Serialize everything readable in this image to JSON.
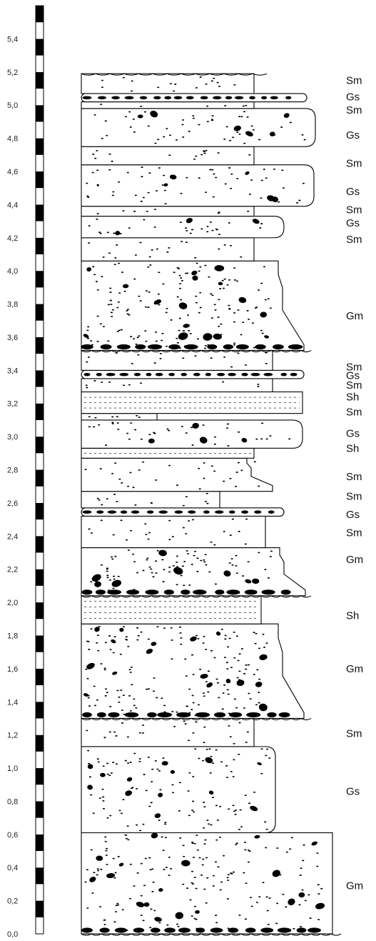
{
  "scale": {
    "unit_ticks": [
      "0,0",
      "0,2",
      "0,4",
      "0,6",
      "0,8",
      "1,0",
      "1,2",
      "1,4",
      "1,6",
      "1,8",
      "2,0",
      "2,2",
      "2,4",
      "2,6",
      "2,8",
      "3,0",
      "3,2",
      "3,4",
      "3,6",
      "3,8",
      "4,0",
      "4,2",
      "4,4",
      "4,6",
      "4,8",
      "5,0",
      "5,2",
      "5,4"
    ],
    "tick_values": [
      0.0,
      0.2,
      0.4,
      0.6,
      0.8,
      1.0,
      1.2,
      1.4,
      1.6,
      1.8,
      2.0,
      2.2,
      2.4,
      2.6,
      2.8,
      3.0,
      3.2,
      3.4,
      3.6,
      3.8,
      4.0,
      4.2,
      4.4,
      4.6,
      4.8,
      5.0,
      5.2,
      5.4
    ],
    "bar_segment": 0.1,
    "bar_top": 5.6
  },
  "facies_labels": [
    {
      "text": "Gm",
      "value": 0.29
    },
    {
      "text": "Gs",
      "value": 0.86
    },
    {
      "text": "Sm",
      "value": 1.21
    },
    {
      "text": "Gm",
      "value": 1.6
    },
    {
      "text": "Sh",
      "value": 1.92
    },
    {
      "text": "Gm",
      "value": 2.26
    },
    {
      "text": "Sm",
      "value": 2.42
    },
    {
      "text": "Gs",
      "value": 2.53
    },
    {
      "text": "Sm",
      "value": 2.64
    },
    {
      "text": "Sm",
      "value": 2.76
    },
    {
      "text": "Sh",
      "value": 2.93
    },
    {
      "text": "Gs",
      "value": 3.02
    },
    {
      "text": "Sm",
      "value": 3.15
    },
    {
      "text": "Sh",
      "value": 3.24
    },
    {
      "text": "Sm",
      "value": 3.31
    },
    {
      "text": "Gs",
      "value": 3.37
    },
    {
      "text": "Sm",
      "value": 3.42
    },
    {
      "text": "Gm",
      "value": 3.73
    },
    {
      "text": "Sm",
      "value": 4.19
    },
    {
      "text": "Gs",
      "value": 4.29
    },
    {
      "text": "Sm",
      "value": 4.37
    },
    {
      "text": "Gs",
      "value": 4.48
    },
    {
      "text": "Sm",
      "value": 4.65
    },
    {
      "text": "Gs",
      "value": 4.82
    },
    {
      "text": "Sm",
      "value": 4.97
    },
    {
      "text": "Gs",
      "value": 5.05
    },
    {
      "text": "Sm",
      "value": 5.15
    }
  ],
  "beds": [
    {
      "facies": "Gm",
      "base": 0.0,
      "top": 0.61
    },
    {
      "facies": "Gs",
      "base": 0.61,
      "top": 1.13
    },
    {
      "facies": "Sm",
      "base": 1.13,
      "top": 1.3
    },
    {
      "facies": "Gm",
      "base": 1.3,
      "top": 1.87
    },
    {
      "facies": "Sh",
      "base": 1.87,
      "top": 2.04
    },
    {
      "facies": "Gm",
      "base": 2.04,
      "top": 2.33
    },
    {
      "facies": "Sm",
      "base": 2.33,
      "top": 2.52
    },
    {
      "facies": "Gs",
      "base": 2.52,
      "top": 2.57
    },
    {
      "facies": "Sm",
      "base": 2.57,
      "top": 2.67
    },
    {
      "facies": "Sm",
      "base": 2.67,
      "top": 2.87
    },
    {
      "facies": "Sh",
      "base": 2.87,
      "top": 2.93
    },
    {
      "facies": "Gs",
      "base": 2.93,
      "top": 3.1
    },
    {
      "facies": "Sm",
      "base": 3.1,
      "top": 3.14
    },
    {
      "facies": "Sh",
      "base": 3.14,
      "top": 3.27
    },
    {
      "facies": "Sm",
      "base": 3.27,
      "top": 3.35
    },
    {
      "facies": "Gs",
      "base": 3.35,
      "top": 3.4
    },
    {
      "facies": "Sm",
      "base": 3.4,
      "top": 3.52
    },
    {
      "facies": "Gm",
      "base": 3.52,
      "top": 4.06
    },
    {
      "facies": "Sm",
      "base": 4.06,
      "top": 4.2
    },
    {
      "facies": "Gs",
      "base": 4.2,
      "top": 4.33
    },
    {
      "facies": "Sm",
      "base": 4.33,
      "top": 4.39
    },
    {
      "facies": "Gs",
      "base": 4.39,
      "top": 4.64
    },
    {
      "facies": "Sm",
      "base": 4.64,
      "top": 4.75
    },
    {
      "facies": "Gs",
      "base": 4.75,
      "top": 4.98
    },
    {
      "facies": "Sm",
      "base": 4.98,
      "top": 5.02
    },
    {
      "facies": "Gs",
      "base": 5.02,
      "top": 5.07
    },
    {
      "facies": "Sm",
      "base": 5.07,
      "top": 5.19
    }
  ],
  "colors": {
    "ink": "#000000",
    "paper": "#ffffff",
    "text": "#111111"
  }
}
